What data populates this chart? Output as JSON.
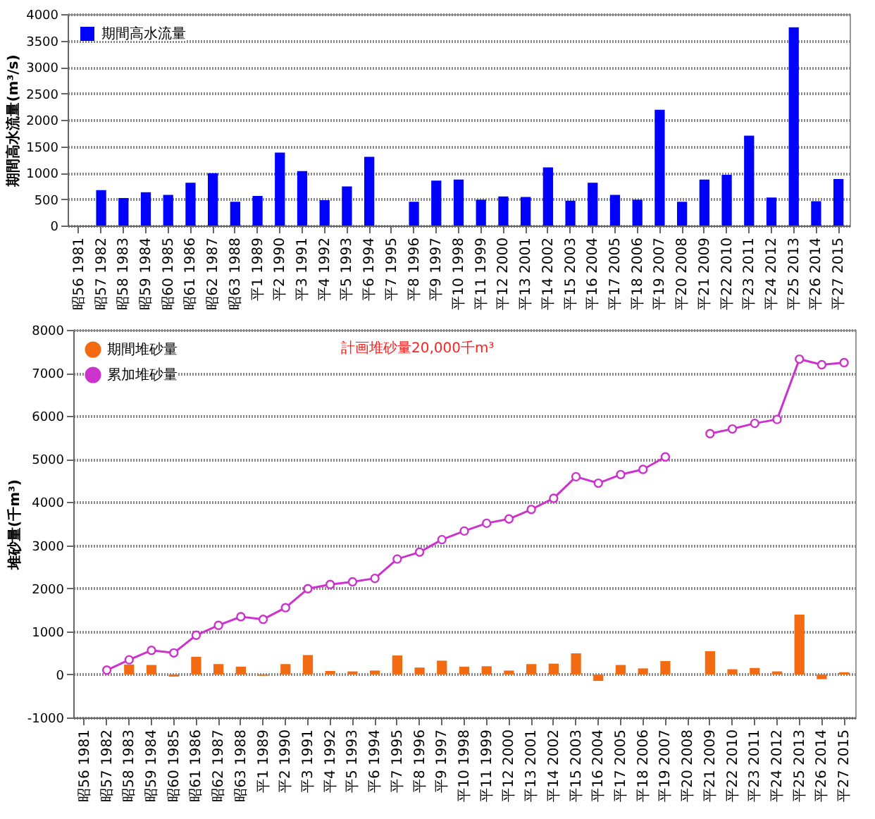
{
  "chart_data": [
    {
      "type": "bar",
      "ylabel": "期間高水流量(m³/s)",
      "categories": [
        "昭56 1981",
        "昭57 1982",
        "昭58 1983",
        "昭59 1984",
        "昭60 1985",
        "昭61 1986",
        "昭62 1987",
        "昭63 1988",
        "平1 1989",
        "平2 1990",
        "平3 1991",
        "平4 1992",
        "平5 1993",
        "平6 1994",
        "平7 1995",
        "平8 1996",
        "平9 1997",
        "平10 1998",
        "平11 1999",
        "平12 2000",
        "平13 2001",
        "平14 2002",
        "平15 2003",
        "平16 2004",
        "平17 2005",
        "平18 2006",
        "平19 2007",
        "平20 2008",
        "平21 2009",
        "平22 2010",
        "平23 2011",
        "平24 2012",
        "平25 2013",
        "平26 2014",
        "平27 2015"
      ],
      "series": [
        {
          "name": "期間高水流量",
          "color": "#0000ff",
          "values": [
            null,
            670,
            520,
            630,
            580,
            810,
            990,
            450,
            560,
            1380,
            1030,
            480,
            740,
            1300,
            null,
            450,
            850,
            870,
            490,
            550,
            540,
            1100,
            470,
            810,
            580,
            490,
            2190,
            450,
            870,
            960,
            1700,
            530,
            3750,
            460,
            880
          ]
        }
      ],
      "ylim": [
        0,
        4000
      ],
      "yticks": [
        0,
        500,
        1000,
        1500,
        2000,
        2500,
        3000,
        3500,
        4000
      ],
      "grid": "y",
      "legend": "top left"
    },
    {
      "type": "bar",
      "ylabel": "堆砂量(千m³)",
      "annotations": [
        "計画堆砂量20,000千m³"
      ],
      "categories": [
        "昭56 1981",
        "昭57 1982",
        "昭58 1983",
        "昭59 1984",
        "昭60 1985",
        "昭61 1986",
        "昭62 1987",
        "昭63 1988",
        "平1 1989",
        "平2 1990",
        "平3 1991",
        "平4 1992",
        "平5 1993",
        "平6 1994",
        "平7 1995",
        "平8 1996",
        "平9 1997",
        "平10 1998",
        "平11 1999",
        "平12 2000",
        "平13 2001",
        "平14 2002",
        "平15 2003",
        "平16 2004",
        "平17 2005",
        "平18 2006",
        "平19 2007",
        "平20 2008",
        "平21 2009",
        "平22 2010",
        "平23 2011",
        "平24 2012",
        "平25 2013",
        "平26 2014",
        "平27 2015"
      ],
      "series": [
        {
          "name": "期間堆砂量",
          "color": "#f26b12",
          "type": "bar",
          "values": [
            null,
            null,
            230,
            220,
            -50,
            410,
            240,
            180,
            -30,
            240,
            450,
            80,
            70,
            90,
            440,
            160,
            320,
            180,
            190,
            90,
            240,
            250,
            490,
            -150,
            220,
            140,
            310,
            null,
            540,
            120,
            150,
            70,
            1390,
            -110,
            50
          ]
        },
        {
          "name": "累加堆砂量",
          "color": "#cc33cc",
          "type": "line",
          "values": [
            null,
            100,
            340,
            560,
            500,
            910,
            1140,
            1340,
            1280,
            1550,
            1990,
            2090,
            2150,
            2230,
            2680,
            2840,
            3130,
            3330,
            3510,
            3610,
            3830,
            4090,
            4590,
            4440,
            4640,
            4760,
            5050,
            null,
            5590,
            5700,
            5830,
            5920,
            7320,
            7190,
            7240
          ]
        }
      ],
      "ylim": [
        -1000,
        8000
      ],
      "yticks": [
        -1000,
        0,
        1000,
        2000,
        3000,
        4000,
        5000,
        6000,
        7000,
        8000
      ],
      "grid": "y",
      "legend": "top left",
      "marker": "circle",
      "line_style": "solid"
    }
  ]
}
